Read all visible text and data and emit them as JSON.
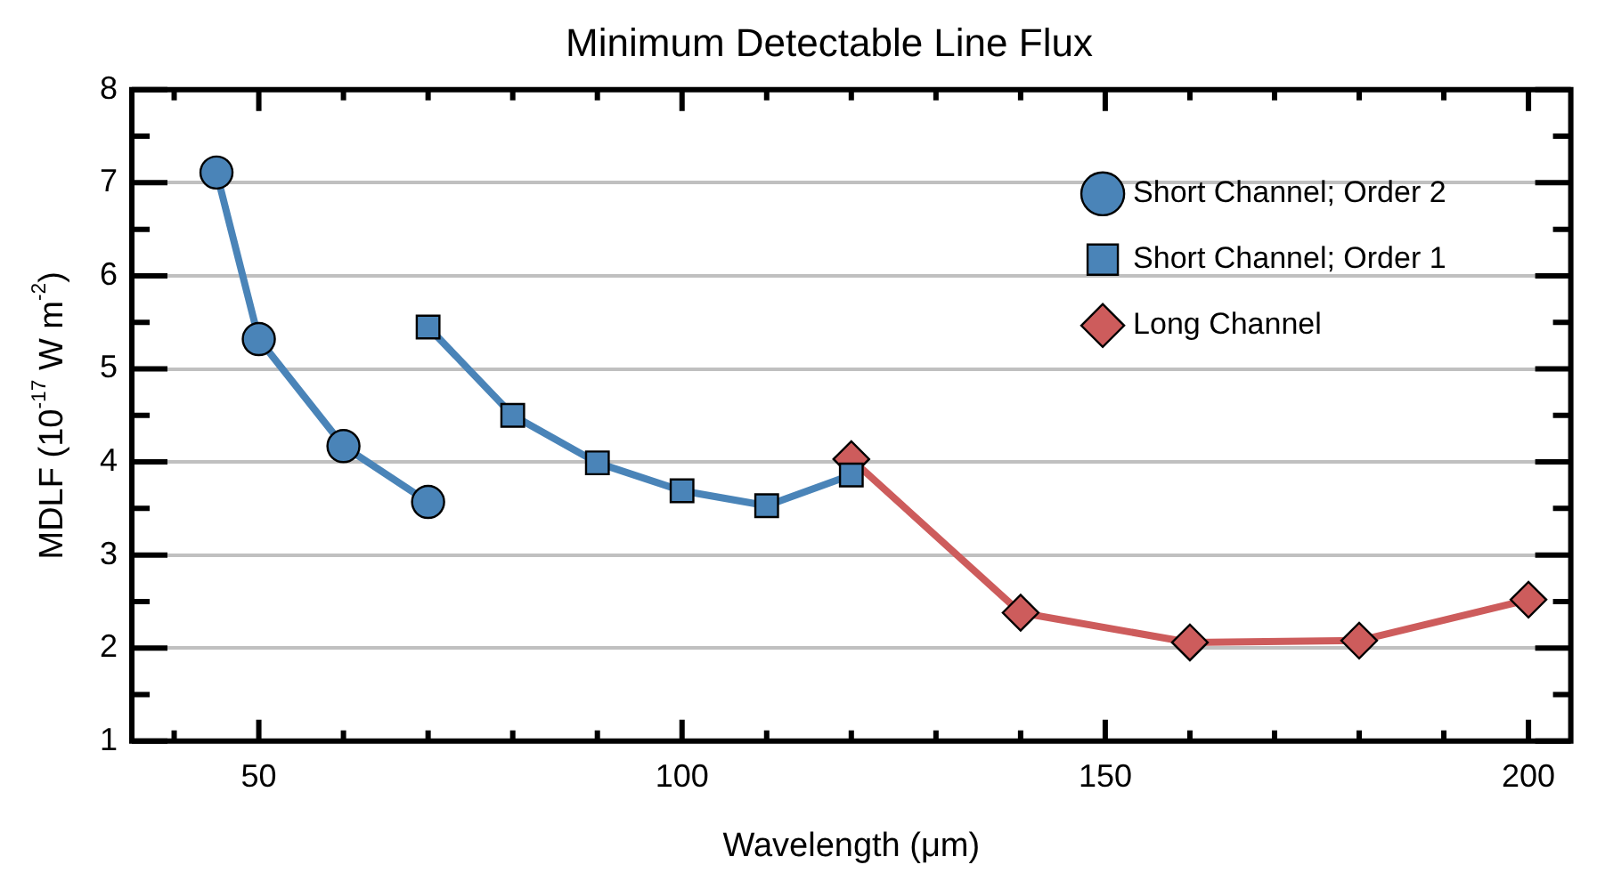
{
  "chart_data": {
    "type": "line",
    "title": "Minimum Detectable Line Flux",
    "xlabel": "Wavelength (μm)",
    "ylabel": "MDLF (10$^{-17}$ W m$^{-2}$)",
    "xlim": [
      35,
      205
    ],
    "ylim": [
      1,
      8
    ],
    "xticks": [
      {
        "value": 40,
        "label": null
      },
      50,
      {
        "value": 60,
        "label": null
      },
      {
        "value": 70,
        "label": null
      },
      {
        "value": 80,
        "label": null
      },
      {
        "value": 90,
        "label": null
      },
      100,
      {
        "value": 110,
        "label": null
      },
      {
        "value": 120,
        "label": null
      },
      {
        "value": 130,
        "label": null
      },
      {
        "value": 140,
        "label": null
      },
      150,
      {
        "value": 160,
        "label": null
      },
      {
        "value": 170,
        "label": null
      },
      {
        "value": 180,
        "label": null
      },
      {
        "value": 190,
        "label": null
      },
      200
    ],
    "yticks": [
      1,
      {
        "value": 1.5,
        "label": null
      },
      2,
      {
        "value": 2.5,
        "label": null
      },
      3,
      {
        "value": 3.5,
        "label": null
      },
      4,
      {
        "value": 4.5,
        "label": null
      },
      5,
      {
        "value": 5.5,
        "label": null
      },
      6,
      {
        "value": 6.5,
        "label": null
      },
      7,
      {
        "value": 7.5,
        "label": null
      },
      8
    ],
    "grid": "y",
    "legend": "top right",
    "line_style": "solid",
    "series": [
      {
        "name": "Short Channel; Order 2",
        "color": "#4a84b8",
        "marker": "circle",
        "x": [
          45,
          50,
          60,
          70
        ],
        "values": [
          7.11,
          5.32,
          4.17,
          3.57
        ]
      },
      {
        "name": "Short Channel; Order 1",
        "color": "#4a84b8",
        "marker": "square",
        "x": [
          70,
          80,
          90,
          100,
          110,
          120
        ],
        "values": [
          5.45,
          4.5,
          3.99,
          3.69,
          3.53,
          3.86
        ]
      },
      {
        "name": "Long Channel",
        "color": "#cd5c5c",
        "marker": "diamond",
        "x": [
          120,
          140,
          160,
          180,
          200
        ],
        "values": [
          4.03,
          2.38,
          2.06,
          2.08,
          2.52
        ]
      }
    ]
  }
}
